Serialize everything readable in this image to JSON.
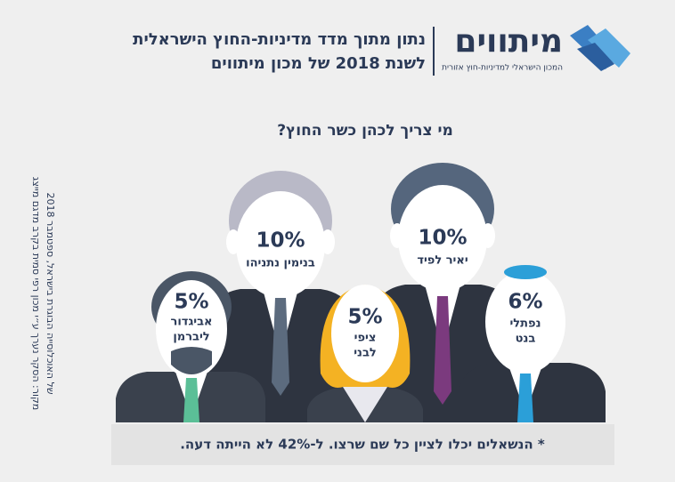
{
  "header": {
    "logo_name": "מיתווים",
    "logo_subtitle": "המכון הישראלי למדיניות-חוץ אזורית",
    "title_lines": [
      "נתון מתוך מדד מדיניות-החוץ הישראלית",
      "לשנת 2018 של מכון מיתווים"
    ]
  },
  "question": "מי צריך לכהן כשר החוץ?",
  "people": [
    {
      "percent": "10%",
      "name": [
        "בנימין נתניהו"
      ]
    },
    {
      "percent": "10%",
      "name": [
        "יאיר לפיד"
      ]
    },
    {
      "percent": "5%",
      "name": [
        "אביגדור",
        "ליברמן"
      ]
    },
    {
      "percent": "5%",
      "name": [
        "ציפי",
        "לבני"
      ]
    },
    {
      "percent": "6%",
      "name": [
        "נפתלי",
        "בנט"
      ]
    }
  ],
  "footnote": "* הנשאלים יכלו לציין כל שם שרצו. ל-42% לא הייתה דעה.",
  "source_lines": [
    "מקור: הסקר נערך ע״י מכון רפי סמית בקרב מדגם מייצג",
    "של האוכלוסייה הבוגרת בישראל, ספטמבר 2018"
  ]
}
